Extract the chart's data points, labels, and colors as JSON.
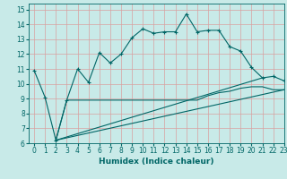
{
  "xlabel": "Humidex (Indice chaleur)",
  "bg_color": "#c8eae8",
  "grid_color": "#d9a0a0",
  "line_color": "#006666",
  "xlim": [
    -0.5,
    23
  ],
  "ylim": [
    6,
    15.4
  ],
  "x_ticks": [
    0,
    1,
    2,
    3,
    4,
    5,
    6,
    7,
    8,
    9,
    10,
    11,
    12,
    13,
    14,
    15,
    16,
    17,
    18,
    19,
    20,
    21,
    22,
    23
  ],
  "y_ticks": [
    6,
    7,
    8,
    9,
    10,
    11,
    12,
    13,
    14,
    15
  ],
  "series1_x": [
    0,
    1,
    2,
    3,
    4,
    5,
    6,
    7,
    8,
    9,
    10,
    11,
    12,
    13,
    14,
    15,
    16,
    17,
    18,
    19,
    20,
    21,
    22,
    23
  ],
  "series1_y": [
    10.9,
    9.1,
    6.2,
    8.9,
    11.0,
    10.1,
    12.1,
    11.4,
    12.0,
    13.1,
    13.7,
    13.4,
    13.5,
    13.5,
    14.7,
    13.5,
    13.6,
    13.6,
    12.5,
    12.2,
    11.1,
    10.4,
    10.5,
    10.2
  ],
  "series2_x": [
    2,
    3,
    4,
    5,
    6,
    7,
    8,
    9,
    10,
    11,
    12,
    13,
    14,
    15,
    16,
    17,
    18,
    19,
    20,
    21,
    22,
    23
  ],
  "series2_y": [
    6.2,
    8.9,
    8.9,
    8.9,
    8.9,
    8.9,
    8.9,
    8.9,
    8.9,
    8.9,
    8.9,
    8.9,
    8.9,
    8.9,
    9.2,
    9.4,
    9.5,
    9.7,
    9.8,
    9.8,
    9.6,
    9.6
  ],
  "series3_x": [
    2,
    23
  ],
  "series3_y": [
    6.2,
    9.6
  ],
  "series4_x": [
    2,
    21
  ],
  "series4_y": [
    6.2,
    10.4
  ]
}
